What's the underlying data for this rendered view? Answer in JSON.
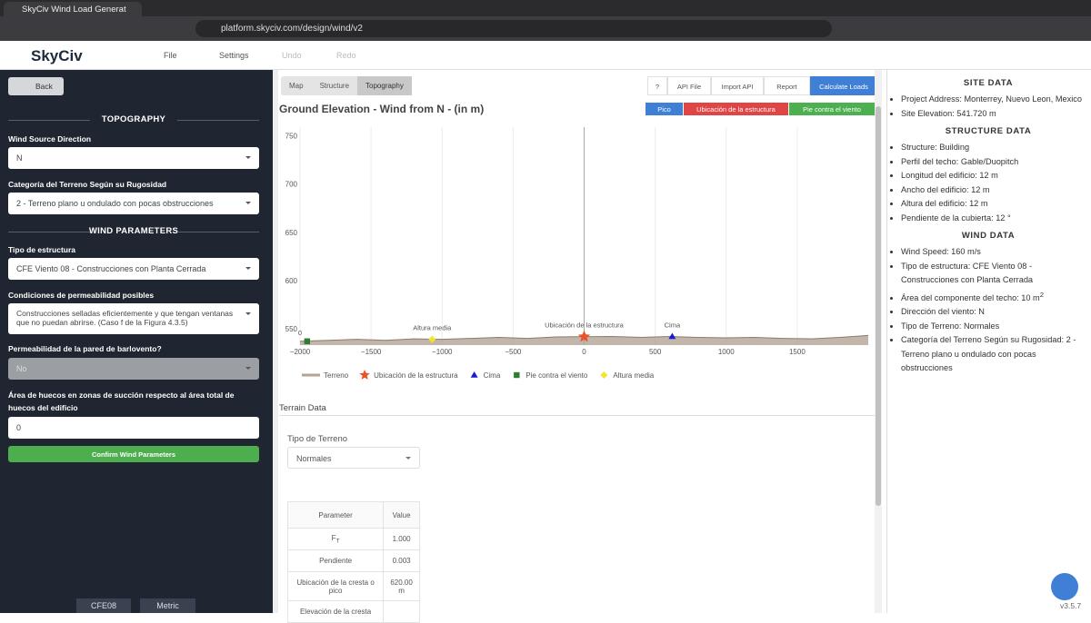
{
  "browser": {
    "tab_title": "SkyCiv Wind Load Generat",
    "url": "platform.skyciv.com/design/wind/v2"
  },
  "app_header": {
    "logo": "SkyCiv",
    "menu": [
      "File",
      "Settings",
      "Undo",
      "Redo"
    ]
  },
  "left_panel": {
    "back": "Back",
    "sections": [
      {
        "title": "TOPOGRAPHY",
        "fields": [
          {
            "label": "Wind Source Direction",
            "value": "N"
          },
          {
            "label": "Categoría del Terreno Según su Rugosidad",
            "value": "2 - Terreno plano u ondulado con pocas obstrucciones"
          }
        ]
      },
      {
        "title": "WIND PARAMETERS",
        "fields": [
          {
            "label": "Tipo de estructura",
            "value": "CFE Viento 08 - Construcciones con Planta Cerrada"
          },
          {
            "label": "Condiciones de permeabilidad posibles",
            "value": "Construcciones selladas eficientemente y que tengan ventanas que no puedan abrirse. (Caso f de la Figura 4.3.5)"
          },
          {
            "label": "Permeabilidad de la pared de barlovento?",
            "value": "No"
          },
          {
            "label": "Área de huecos en zonas de succión respecto al área total de huecos del edificio",
            "value": "0"
          }
        ]
      }
    ],
    "confirm_button": "Confirm Wind Parameters",
    "footer": [
      "CFE08",
      "Metric"
    ]
  },
  "main": {
    "tabs": [
      "Map",
      "Structure",
      "Topography"
    ],
    "actions": [
      "?",
      "API File",
      "Import API",
      "Report",
      "Calculate Loads"
    ],
    "chart_buttons": [
      "Pico",
      "Ubicación de la estructura",
      "Pie contra el viento"
    ],
    "terrain_data": {
      "title": "Terrain Data",
      "type_label": "Tipo de Terreno",
      "type_value": "Normales",
      "table": {
        "header": [
          "Parameter",
          "Value"
        ],
        "rows": [
          [
            {
              "text": "F",
              "sub": "T"
            },
            "1.000"
          ],
          [
            "Pendiente",
            "0.003"
          ],
          [
            "Ubicación de la cresta o pico",
            "620.00 m"
          ],
          [
            "Elevación de la cresta",
            ""
          ]
        ]
      }
    }
  },
  "chart_data": {
    "type": "line",
    "title": "Ground Elevation - Wind from N - (in m)",
    "xlim": [
      -2000,
      2000
    ],
    "ylim": [
      533,
      759
    ],
    "xticks": [
      {
        "value": -2000,
        "label": "−2000"
      },
      {
        "value": -1500,
        "label": "−1500"
      },
      {
        "value": -1000,
        "label": "−1000"
      },
      {
        "value": -500,
        "label": "−500"
      },
      0,
      500,
      1000,
      1500
    ],
    "yticks": [
      550,
      600,
      650,
      700,
      750
    ],
    "grid": "x",
    "series": [
      {
        "name": "Terreno",
        "color": "#b3a395",
        "marker": "line",
        "x": [
          -2000,
          -1800,
          -1600,
          -1400,
          -1200,
          -1000,
          -800,
          -600,
          -400,
          -200,
          0,
          200,
          400,
          600,
          800,
          1000,
          1200,
          1400,
          1600,
          1800,
          2000
        ],
        "values": [
          537,
          538,
          539,
          538,
          539.5,
          539,
          540,
          541,
          540,
          541.5,
          541.72,
          542,
          541,
          542,
          541,
          540.5,
          541,
          540,
          539.5,
          541,
          543
        ]
      },
      {
        "name": "Ubicación de la estructura",
        "color": "#e8532a",
        "marker": "star",
        "x": [
          0
        ],
        "values": [
          541.72
        ]
      },
      {
        "name": "Cima",
        "color": "#1a1ad6",
        "marker": "triangle",
        "x": [
          620
        ],
        "values": [
          542
        ]
      },
      {
        "name": "Pie contra el viento",
        "color": "#2e7d32",
        "marker": "square",
        "x": [
          -1950
        ],
        "values": [
          537
        ]
      },
      {
        "name": "Altura media",
        "color": "#f2e52a",
        "marker": "diamond",
        "x": [
          -1070
        ],
        "values": [
          539
        ]
      }
    ],
    "annotations": [
      {
        "text": "Altura media",
        "x": -1070,
        "y": 539
      },
      {
        "text": "Ubicación de la estructura",
        "x": 0,
        "y": 541.72
      },
      {
        "text": "Cima",
        "x": 620,
        "y": 542
      },
      {
        "text": "0",
        "x": -2000,
        "y": 534
      }
    ]
  },
  "right_panel": {
    "sections": [
      {
        "title": "SITE DATA",
        "items": [
          "Project Address: Monterrey, Nuevo Leon, Mexico",
          "Site Elevation: 541.720 m"
        ]
      },
      {
        "title": "STRUCTURE DATA",
        "items": [
          "Structure: Building",
          "Perfil del techo: Gable/Duopitch",
          "Longitud del edificio: 12 m",
          "Ancho del edificio: 12 m",
          "Altura del edificio: 12 m",
          "Pendiente de la cubierta: 12 °"
        ]
      },
      {
        "title": "WIND DATA",
        "items": [
          "Wind Speed: 160 m/s",
          "Tipo de estructura: CFE Viento 08 - Construcciones con Planta Cerrada",
          {
            "text": "Área del componente del techo: 10 m",
            "sup": "2"
          },
          "Dirección del viento: N",
          "Tipo de Terreno: Normales",
          "Categoría del Terreno Según su Rugosidad: 2 - Terreno plano u ondulado con pocas obstrucciones"
        ]
      }
    ],
    "version": "v3.5.7"
  }
}
